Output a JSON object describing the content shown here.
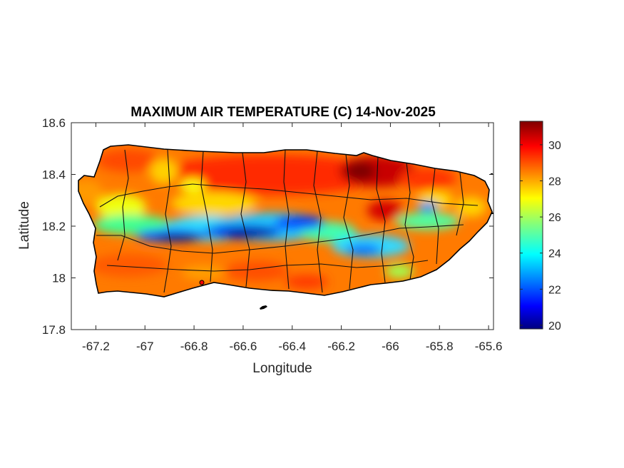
{
  "chart_data": {
    "type": "heatmap",
    "title": "MAXIMUM AIR TEMPERATURE (C) 14-Nov-2025",
    "xlabel": "Longitude",
    "ylabel": "Latitude",
    "xlim": [
      -67.3,
      -65.58
    ],
    "ylim": [
      17.8,
      18.6
    ],
    "xticks": [
      -67.2,
      -67,
      -66.8,
      -66.6,
      -66.4,
      -66.2,
      -66,
      -65.8,
      -65.6
    ],
    "xtick_labels": [
      "-67.2",
      "-67",
      "-66.8",
      "-66.6",
      "-66.4",
      "-66.2",
      "-66",
      "-65.8",
      "-65.6"
    ],
    "yticks": [
      17.8,
      18,
      18.2,
      18.4,
      18.6
    ],
    "ytick_labels": [
      "17.8",
      "18",
      "18.2",
      "18.4",
      "18.6"
    ],
    "colorbar": {
      "colormap": "jet",
      "clim": [
        19.8,
        31.3
      ],
      "ticks": [
        20,
        22,
        24,
        26,
        28,
        30
      ],
      "tick_labels": [
        "20",
        "22",
        "24",
        "26",
        "28",
        "30"
      ]
    },
    "grid": false,
    "colors": {
      "axes": "#262626",
      "boundary": "#000000"
    }
  }
}
